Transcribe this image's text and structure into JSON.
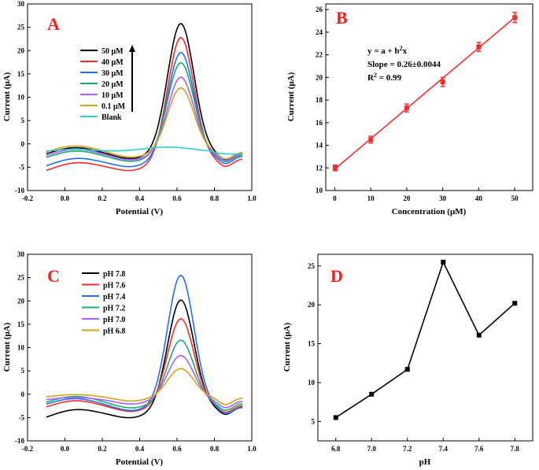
{
  "colors": {
    "black": "#000000",
    "red": "#ff2a2a",
    "blue": "#1f6fff",
    "green": "#17b06a",
    "purple": "#b05cff",
    "orange": "#d4a21a",
    "cyan": "#2ecfd1",
    "line": "#000000"
  },
  "chart_data": [
    {
      "panel": "A",
      "type": "line",
      "xlabel": "Potential (V)",
      "ylabel": "Current (μA)",
      "xlim": [
        -0.2,
        1.0
      ],
      "ylim": [
        -10,
        30
      ],
      "xticks": [
        "-0.2",
        "0.0",
        "0.2",
        "0.4",
        "0.6",
        "0.8",
        "1.0"
      ],
      "yticks": [
        "-10",
        "-5",
        "0",
        "5",
        "10",
        "15",
        "20",
        "25",
        "30"
      ],
      "x_range": [
        -0.1,
        0.95
      ],
      "peak_x": 0.62,
      "series": [
        {
          "name": "50 μM",
          "color": "black",
          "peak": 25.8,
          "start": -3.2,
          "end": -2.0
        },
        {
          "name": "40 μM",
          "color": "red",
          "peak": 22.8,
          "start": -6.8,
          "end": -3.2
        },
        {
          "name": "30 μM",
          "color": "blue",
          "peak": 19.6,
          "start": -5.8,
          "end": -2.6
        },
        {
          "name": "20 μM",
          "color": "green",
          "peak": 17.4,
          "start": -4.0,
          "end": -2.3
        },
        {
          "name": "10 μM",
          "color": "purple",
          "peak": 14.3,
          "start": -3.6,
          "end": -2.1
        },
        {
          "name": "0.1 μM",
          "color": "orange",
          "peak": 12.0,
          "start": -2.8,
          "end": -1.8
        },
        {
          "name": "Blank",
          "color": "cyan",
          "peak": -0.7,
          "start": -2.0,
          "end": -1.4
        }
      ]
    },
    {
      "panel": "B",
      "type": "scatter",
      "xlabel": "Concentration (μM)",
      "ylabel": "Current (μA)",
      "xlim": [
        -2.5,
        55
      ],
      "ylim": [
        10,
        26.5
      ],
      "xticks": [
        "0",
        "10",
        "20",
        "30",
        "40",
        "50"
      ],
      "yticks": [
        "10",
        "12",
        "14",
        "16",
        "18",
        "20",
        "22",
        "24",
        "26"
      ],
      "x": [
        0.1,
        10,
        20,
        30,
        40,
        50
      ],
      "y": [
        12.0,
        14.5,
        17.3,
        19.6,
        22.7,
        25.3
      ],
      "err": [
        0.25,
        0.3,
        0.35,
        0.4,
        0.4,
        0.45
      ],
      "fit": {
        "x0": 0,
        "y0": 11.9,
        "x1": 50,
        "y1": 25.3
      },
      "eq": "y =  a + b",
      "eq_sup": "2",
      "eq_end": "x",
      "slope": "Slope = 0.26±0.0044",
      "r2_prefix": "R",
      "r2_sup": "2",
      "r2_end": " = 0.99"
    },
    {
      "panel": "C",
      "type": "line",
      "xlabel": "Potential (V)",
      "ylabel": "Current (μA)",
      "xlim": [
        -0.2,
        1.0
      ],
      "ylim": [
        -10,
        30
      ],
      "xticks": [
        "-0.2",
        "0.0",
        "0.2",
        "0.4",
        "0.6",
        "0.8",
        "1.0"
      ],
      "yticks": [
        "-10",
        "-5",
        "0",
        "5",
        "10",
        "15",
        "20",
        "25",
        "30"
      ],
      "x_range": [
        -0.1,
        0.95
      ],
      "peak_x": 0.62,
      "series": [
        {
          "name": "pH 7.8",
          "color": "black",
          "peak": 20.2,
          "start": -6.0,
          "end": -2.7
        },
        {
          "name": "pH 7.6",
          "color": "red",
          "peak": 16.2,
          "start": -3.8,
          "end": -2.4
        },
        {
          "name": "pH 7.4",
          "color": "blue",
          "peak": 25.5,
          "start": -3.2,
          "end": -2.8
        },
        {
          "name": "pH 7.2",
          "color": "green",
          "peak": 11.6,
          "start": -2.8,
          "end": -2.0
        },
        {
          "name": "pH 7.0",
          "color": "purple",
          "peak": 8.3,
          "start": -1.6,
          "end": -1.5
        },
        {
          "name": "pH 6.8",
          "color": "orange",
          "peak": 5.5,
          "start": -1.0,
          "end": -0.8
        }
      ]
    },
    {
      "panel": "D",
      "type": "line",
      "xlabel": "pH",
      "ylabel": "Current (μA)",
      "xlim": [
        6.7,
        7.9
      ],
      "ylim": [
        2.5,
        26.5
      ],
      "xticks": [
        "6.8",
        "7.0",
        "7.2",
        "7.4",
        "7.6",
        "7.8"
      ],
      "yticks": [
        "5",
        "10",
        "15",
        "20",
        "25"
      ],
      "x": [
        6.8,
        7.0,
        7.2,
        7.4,
        7.6,
        7.8
      ],
      "y": [
        5.5,
        8.5,
        11.7,
        25.5,
        16.1,
        20.2
      ]
    }
  ]
}
